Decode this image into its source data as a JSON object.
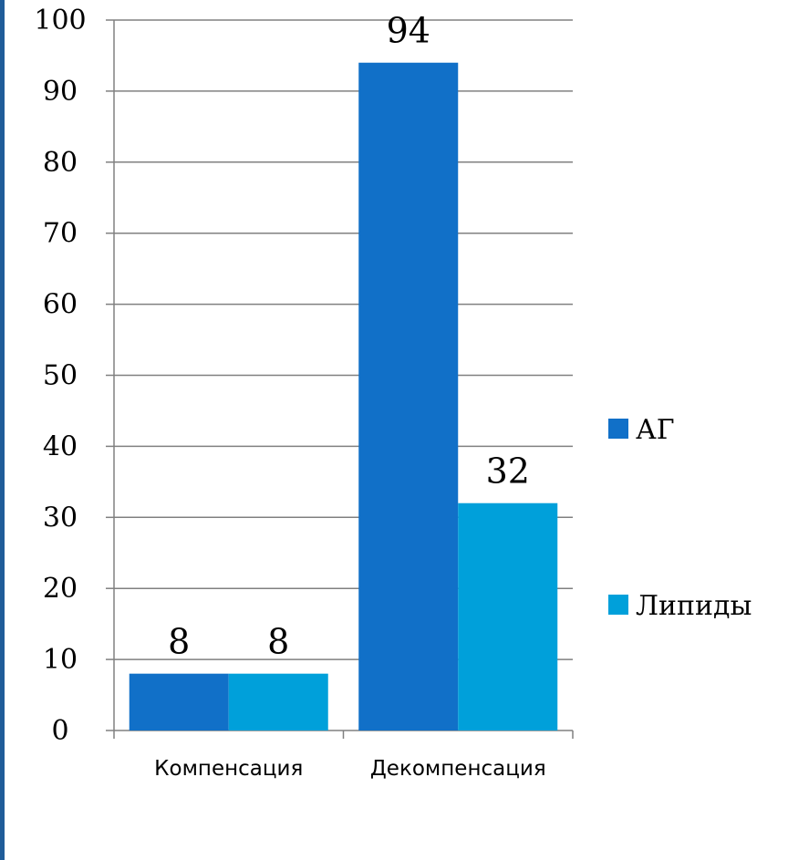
{
  "colors": {
    "border": "#1F5C99",
    "grid": "#808080",
    "axis": "#808080"
  },
  "chart_data": {
    "type": "bar",
    "categories": [
      "Компенсация",
      "Декомпенсация"
    ],
    "series": [
      {
        "name": "АГ",
        "values": [
          8,
          94
        ],
        "color": "#1170C8"
      },
      {
        "name": "Липиды",
        "values": [
          8,
          32
        ],
        "color": "#00A0DA"
      }
    ],
    "title": "",
    "xlabel": "",
    "ylabel": "",
    "ylim": [
      0,
      100
    ],
    "yticks": [
      0,
      10,
      20,
      30,
      40,
      50,
      60,
      70,
      80,
      90,
      100
    ],
    "ytick_labels": [
      "0",
      "10",
      "20",
      "30",
      "40",
      "50",
      "60",
      "70",
      "80",
      "90",
      "100"
    ],
    "data_labels": [
      [
        "8",
        "94"
      ],
      [
        "8",
        "32"
      ]
    ],
    "grid": true,
    "legend": "right"
  }
}
